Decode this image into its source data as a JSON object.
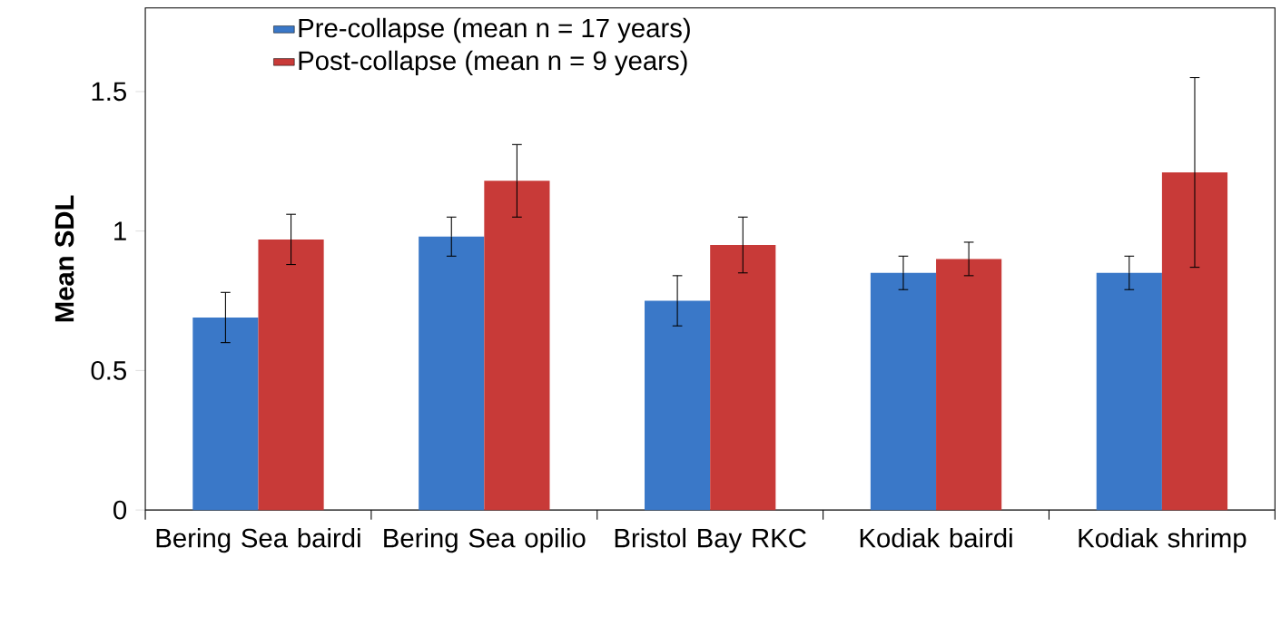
{
  "chart_data": {
    "type": "bar",
    "ylabel": "Mean SDL",
    "categories": [
      "Bering Sea bairdi",
      "Bering Sea opilio",
      "Bristol Bay RKC",
      "Kodiak bairdi",
      "Kodiak shrimp"
    ],
    "series": [
      {
        "name": "Pre-collapse (mean n = 17 years)",
        "color": "#3a78c8",
        "values": [
          0.69,
          0.98,
          0.75,
          0.85,
          0.85
        ],
        "errors": [
          0.09,
          0.07,
          0.09,
          0.06,
          0.06
        ]
      },
      {
        "name": "Post-collapse (mean n = 9 years)",
        "color": "#c83a38",
        "values": [
          0.97,
          1.18,
          0.95,
          0.9,
          1.21
        ],
        "errors": [
          0.09,
          0.13,
          0.1,
          0.06,
          0.34
        ]
      }
    ],
    "ylim": [
      0,
      1.8
    ],
    "yticks": [
      0,
      0.5,
      1,
      1.5
    ],
    "legend": "top left",
    "grid": false
  }
}
